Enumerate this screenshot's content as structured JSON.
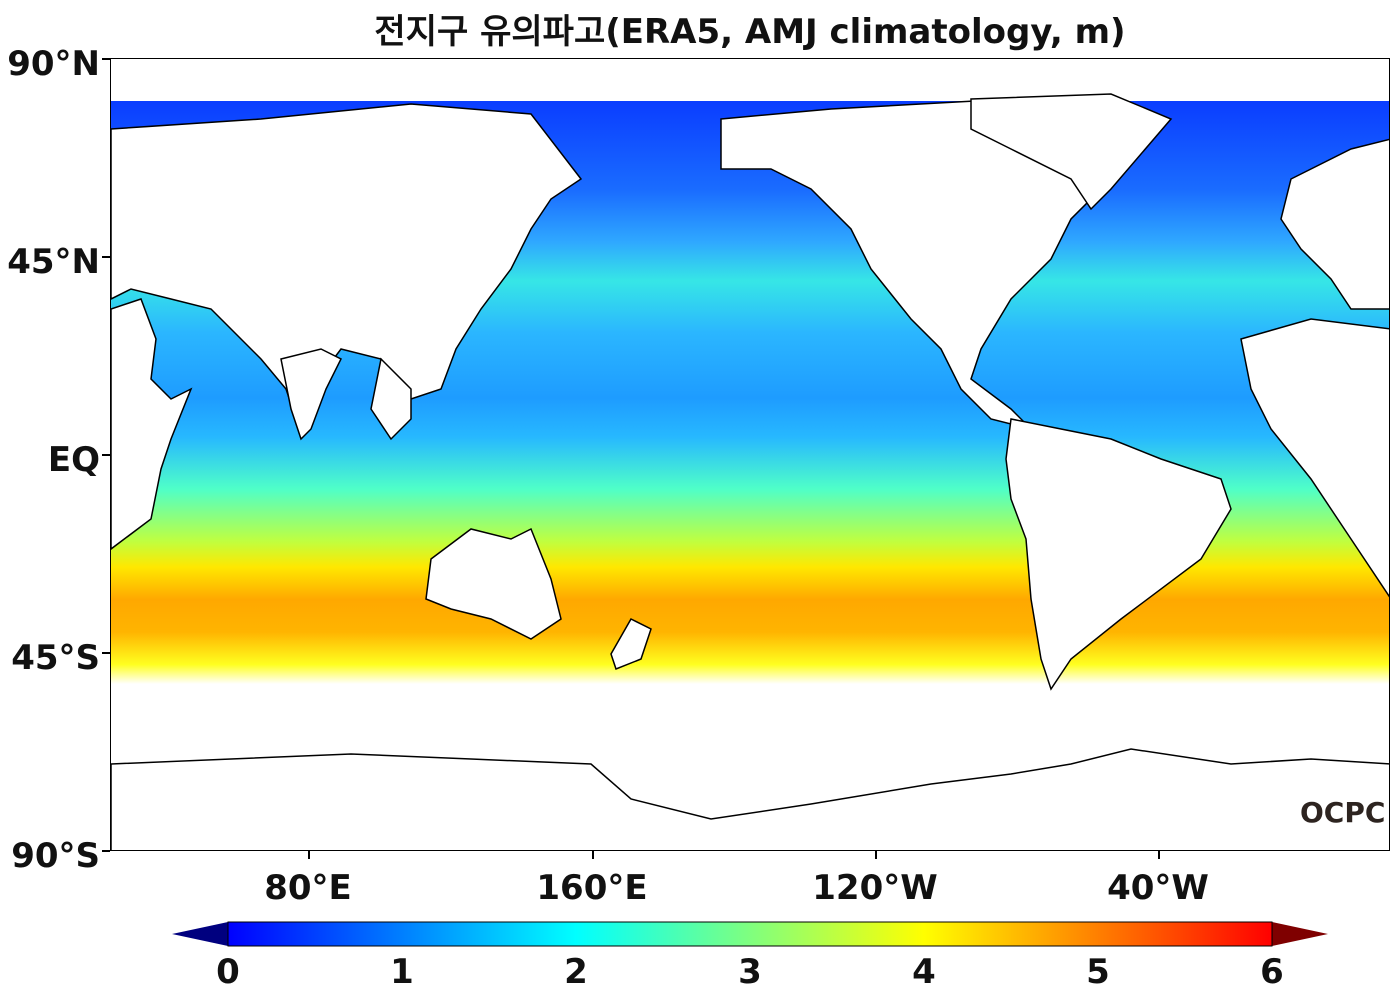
{
  "title": "전지구 유의파고(ERA5, AMJ climatology, m)",
  "map": {
    "lat_labels": [
      "90°N",
      "45°N",
      "EQ",
      "45°S",
      "90°S"
    ],
    "lon_labels": [
      "80°E",
      "160°E",
      "120°W",
      "40°W"
    ],
    "logo_text": "OCPC"
  },
  "colorbar": {
    "min": 0,
    "max": 6,
    "tick_labels": [
      "0",
      "1",
      "2",
      "3",
      "4",
      "5",
      "6"
    ],
    "colors": [
      "#00007f",
      "#0000ff",
      "#007fff",
      "#00ffff",
      "#7fff7f",
      "#ffff00",
      "#ff7f00",
      "#ff0000",
      "#7f0000"
    ],
    "extend": "both"
  }
}
